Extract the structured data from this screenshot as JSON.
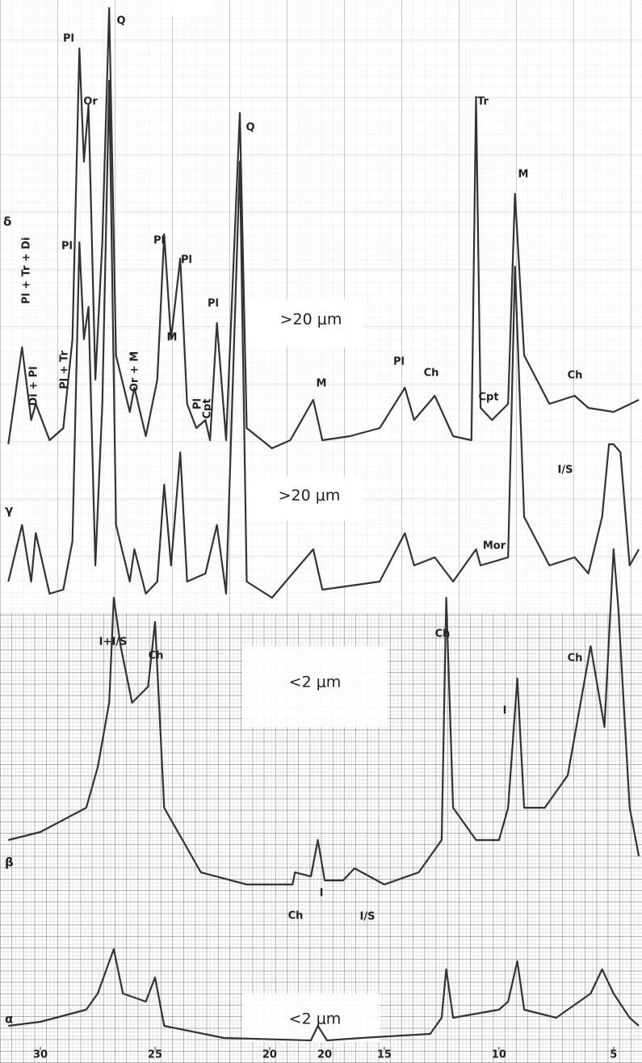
{
  "chart_data": {
    "type": "line",
    "xlim": [
      31.8,
      3.8
    ],
    "xticks": [
      30,
      25,
      20,
      15,
      10,
      5
    ],
    "axis_note": "20",
    "series": [
      {
        "name": "α",
        "color": "#333",
        "x": [
          31.4,
          30.0,
          28.0,
          27.5,
          26.8,
          26.4,
          25.4,
          25.0,
          24.6,
          22.0,
          18.2,
          17.9,
          17.5,
          16.0,
          13.0,
          12.5,
          12.3,
          12.0,
          10.0,
          9.6,
          9.2,
          8.9,
          7.5,
          6.0,
          5.5,
          5.0,
          4.3,
          3.9
        ],
        "values": [
          4,
          5,
          8,
          12,
          23,
          12,
          10,
          16,
          4,
          1,
          0.4,
          4,
          0.4,
          1,
          2,
          6,
          18,
          6,
          8,
          10,
          20,
          8,
          6,
          12,
          18,
          12,
          6,
          4
        ]
      },
      {
        "name": "β",
        "color": "#333",
        "x": [
          31.4,
          30.0,
          28.0,
          27.5,
          27.0,
          26.8,
          26.5,
          26.0,
          25.3,
          25.0,
          24.6,
          23.0,
          21.0,
          19.0,
          18.9,
          18.2,
          17.9,
          17.6,
          16.8,
          16.3,
          15.0,
          13.5,
          12.5,
          12.3,
          12.0,
          11.0,
          10.0,
          9.6,
          9.2,
          8.9,
          8.0,
          7.0,
          6.0,
          5.4,
          5.0,
          4.8,
          4.3,
          3.9
        ],
        "values": [
          12,
          14,
          20,
          30,
          46,
          72,
          60,
          46,
          50,
          66,
          20,
          4,
          1,
          1,
          4,
          3,
          12,
          2,
          2,
          5,
          1,
          4,
          12,
          72,
          20,
          12,
          12,
          20,
          52,
          20,
          20,
          28,
          60,
          40,
          84,
          70,
          20,
          8
        ]
      },
      {
        "name": "γ",
        "color": "#333",
        "x": [
          31.4,
          30.8,
          30.4,
          30.2,
          29.6,
          29.0,
          28.6,
          28.3,
          28.1,
          27.9,
          27.6,
          27.3,
          27.0,
          26.7,
          26.1,
          25.9,
          25.4,
          24.9,
          24.6,
          24.3,
          23.9,
          23.6,
          22.8,
          22.3,
          21.9,
          21.3,
          21.0,
          19.9,
          18.1,
          17.7,
          15.2,
          14.1,
          13.7,
          12.8,
          12.0,
          11.0,
          10.8,
          9.6,
          9.3,
          8.9,
          7.8,
          6.7,
          6.1,
          5.5,
          5.2,
          5.0,
          4.7,
          4.3,
          3.9
        ],
        "values": [
          4,
          18,
          4,
          16,
          1,
          2,
          14,
          88,
          64,
          72,
          8,
          48,
          128,
          18,
          4,
          12,
          1,
          4,
          28,
          8,
          36,
          4,
          6,
          18,
          1,
          108,
          4,
          0,
          12,
          2,
          4,
          16,
          8,
          10,
          4,
          12,
          8,
          10,
          82,
          20,
          8,
          10,
          6,
          20,
          38,
          38,
          36,
          8,
          12
        ]
      },
      {
        "name": "δ",
        "color": "#333",
        "x": [
          31.4,
          30.8,
          30.4,
          30.2,
          29.6,
          29.0,
          28.6,
          28.3,
          28.1,
          27.9,
          27.6,
          27.3,
          27.0,
          26.7,
          26.1,
          25.9,
          25.4,
          24.9,
          24.6,
          24.3,
          23.9,
          23.6,
          23.2,
          22.8,
          22.6,
          22.3,
          21.9,
          21.3,
          21.0,
          19.9,
          19.1,
          18.1,
          17.7,
          16.5,
          15.2,
          14.1,
          13.7,
          12.8,
          12.0,
          11.2,
          11.0,
          10.8,
          10.3,
          9.6,
          9.3,
          8.9,
          7.8,
          6.7,
          6.1,
          5.0,
          3.9
        ],
        "values": [
          2,
          26,
          8,
          12,
          3,
          6,
          28,
          100,
          72,
          86,
          18,
          52,
          110,
          24,
          10,
          16,
          4,
          18,
          54,
          28,
          48,
          12,
          6,
          8,
          3,
          32,
          3,
          84,
          6,
          1,
          3,
          13,
          3,
          4,
          6,
          16,
          8,
          14,
          4,
          3,
          88,
          11,
          8,
          12,
          64,
          24,
          12,
          14,
          11,
          10,
          13
        ]
      }
    ],
    "annotations": [
      "Pl",
      "Q",
      "Or",
      "Pl",
      "Pl",
      "Pl",
      "M",
      "Pl",
      "Pl + Tr + Di",
      "Di + Pl",
      "Pl + Tr",
      "Or + M",
      "Pl",
      "Cpt",
      "Q",
      ">20 μm",
      "M",
      "Pl",
      "Ch",
      "Tr",
      "Cpt",
      "M",
      "Ch",
      ">20 μm",
      "Mor",
      "I/S",
      "Ch",
      "<2 μm",
      "I+I/S",
      "Ch",
      "Ch",
      "I",
      "Ch",
      "I",
      "I/S",
      "<2 μm"
    ]
  }
}
